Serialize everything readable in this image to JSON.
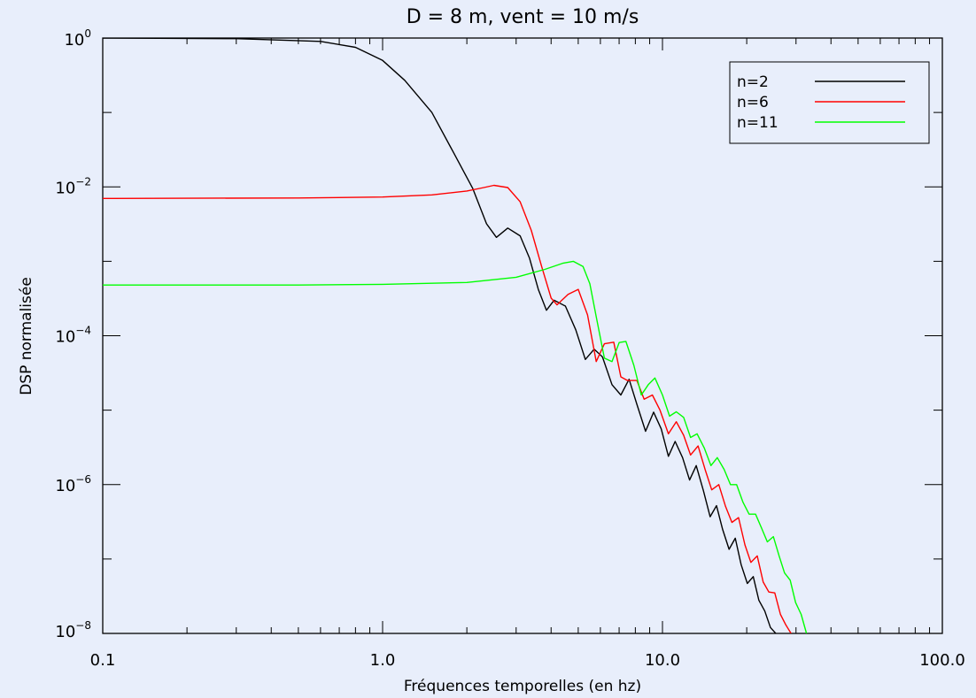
{
  "chart_data": {
    "type": "line",
    "title": "D = 8 m, vent = 10 m/s",
    "xlabel": "Fréquences temporelles (en hz)",
    "ylabel": "DSP normalisée",
    "x_scale": "log",
    "y_scale": "log",
    "xlim": [
      0.1,
      100.0
    ],
    "ylim": [
      1e-08,
      1.0
    ],
    "x_ticks": [
      "0.1",
      "1.0",
      "10.0",
      "100.0"
    ],
    "y_ticks": [
      {
        "value": 1e-08,
        "base": "10",
        "exp": "−8"
      },
      {
        "value": 1e-06,
        "base": "10",
        "exp": "−6"
      },
      {
        "value": 0.0001,
        "base": "10",
        "exp": "−4"
      },
      {
        "value": 0.01,
        "base": "10",
        "exp": "−2"
      },
      {
        "value": 1,
        "base": "10",
        "exp": "0"
      }
    ],
    "grid": false,
    "legend_position": "top-right",
    "series": [
      {
        "name": "n=2",
        "color": "#000000",
        "x": [
          0.1,
          0.3,
          0.6,
          0.8,
          1.0,
          1.2,
          1.5,
          1.8,
          2.1,
          2.35,
          2.55,
          2.8,
          3.1,
          3.35,
          3.6,
          3.85,
          4.1,
          4.5,
          4.9,
          5.3,
          5.7,
          6.1,
          6.6,
          7.1,
          7.6,
          8.1,
          8.7,
          9.3,
          9.9,
          10.5,
          11.1,
          11.8,
          12.5,
          13.2,
          14.0,
          14.8,
          15.6,
          16.4,
          17.3,
          18.2,
          19.1,
          20.1,
          21.1,
          22.1,
          23.2,
          24.3,
          25.4
        ],
        "y": [
          1.0,
          0.98,
          0.9,
          0.75,
          0.5,
          0.27,
          0.1,
          0.028,
          0.0095,
          0.0032,
          0.0021,
          0.0028,
          0.0022,
          0.0011,
          0.00042,
          0.00022,
          0.0003,
          0.00025,
          0.00012,
          4.8e-05,
          6.6e-05,
          5.2e-05,
          2.2e-05,
          1.6e-05,
          2.6e-05,
          1.2e-05,
          5.2e-06,
          9.4e-06,
          5.6e-06,
          2.4e-06,
          3.8e-06,
          2.3e-06,
          1.15e-06,
          1.8e-06,
          8.3e-07,
          3.7e-07,
          5.2e-07,
          2.5e-07,
          1.35e-07,
          1.9e-07,
          8.4e-08,
          4.7e-08,
          5.8e-08,
          2.8e-08,
          2e-08,
          1.2e-08,
          1e-08
        ]
      },
      {
        "name": "n=6",
        "color": "#ff0000",
        "x": [
          0.1,
          0.5,
          1.0,
          1.5,
          2.0,
          2.3,
          2.5,
          2.8,
          3.1,
          3.4,
          3.7,
          4.0,
          4.2,
          4.6,
          5.0,
          5.4,
          5.8,
          6.2,
          6.7,
          7.1,
          7.5,
          8.1,
          8.6,
          9.2,
          9.8,
          10.5,
          11.2,
          11.9,
          12.6,
          13.4,
          14.2,
          15.0,
          15.9,
          16.8,
          17.7,
          18.7,
          19.7,
          20.7,
          21.8,
          22.9,
          24.0,
          25.2,
          26.4,
          27.6,
          28.8
        ],
        "y": [
          0.007,
          0.0071,
          0.0073,
          0.0078,
          0.0088,
          0.0098,
          0.0105,
          0.0098,
          0.0063,
          0.0026,
          0.00085,
          0.00032,
          0.00026,
          0.00036,
          0.00042,
          0.00019,
          4.5e-05,
          7.8e-05,
          8.2e-05,
          2.8e-05,
          2.5e-05,
          2.5e-05,
          1.4e-05,
          1.6e-05,
          1e-05,
          4.8e-06,
          7e-06,
          4.6e-06,
          2.5e-06,
          3.3e-06,
          1.6e-06,
          8.5e-07,
          1e-06,
          5.1e-07,
          3.1e-07,
          3.6e-07,
          1.55e-07,
          9e-08,
          1.1e-07,
          4.9e-08,
          3.6e-08,
          3.5e-08,
          1.8e-08,
          1.3e-08,
          1e-08
        ]
      },
      {
        "name": "n=11",
        "color": "#00ff00",
        "x": [
          0.1,
          0.5,
          1.0,
          2.0,
          3.0,
          3.8,
          4.4,
          4.8,
          5.2,
          5.5,
          5.8,
          6.2,
          6.6,
          7.0,
          7.4,
          7.9,
          8.4,
          8.9,
          9.4,
          10.0,
          10.6,
          11.2,
          11.9,
          12.6,
          13.3,
          14.1,
          14.9,
          15.7,
          16.6,
          17.5,
          18.4,
          19.4,
          20.4,
          21.5,
          22.6,
          23.7,
          24.9,
          26.1,
          27.3,
          28.6,
          29.9,
          31.3,
          32.7
        ],
        "y": [
          0.00048,
          0.00048,
          0.00049,
          0.00052,
          0.00061,
          0.00078,
          0.00094,
          0.001,
          0.00085,
          0.0005,
          0.00018,
          5e-05,
          4.5e-05,
          8.1e-05,
          8.4e-05,
          4e-05,
          1.6e-05,
          2.2e-05,
          2.7e-05,
          1.6e-05,
          8.3e-06,
          9.5e-06,
          8e-06,
          4.3e-06,
          4.8e-06,
          3.1e-06,
          1.8e-06,
          2.3e-06,
          1.6e-06,
          1e-06,
          1e-06,
          5.8e-07,
          4e-07,
          4e-07,
          2.6e-07,
          1.7e-07,
          2e-07,
          1.1e-07,
          6.5e-08,
          5.2e-08,
          2.6e-08,
          1.8e-08,
          1e-08
        ]
      }
    ]
  }
}
